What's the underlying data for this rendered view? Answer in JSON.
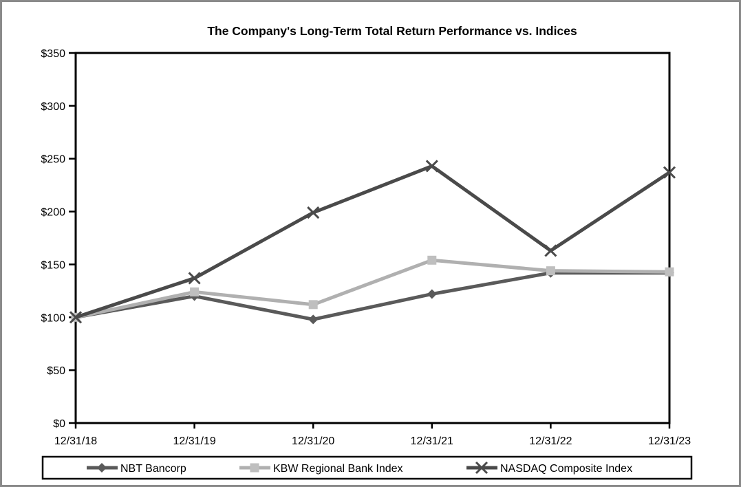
{
  "window": {
    "background": "#ffffff",
    "border_color": "#8a8a8a",
    "axis_color": "#000000"
  },
  "chart_data": {
    "type": "line",
    "title": "The Company's Long-Term Total Return Performance vs. Indices",
    "xlabel": "",
    "ylabel": "",
    "categories": [
      "12/31/18",
      "12/31/19",
      "12/31/20",
      "12/31/21",
      "12/31/22",
      "12/31/23"
    ],
    "series": [
      {
        "name": "NBT Bancorp",
        "marker": "diamond",
        "color": "#5a5a5a",
        "marker_color": "#5a5a5a",
        "values": [
          100,
          120,
          98,
          122,
          142,
          142
        ]
      },
      {
        "name": "KBW Regional Bank Index",
        "marker": "square",
        "color": "#b0b0b0",
        "marker_color": "#bfbfbf",
        "values": [
          100,
          124,
          112,
          154,
          144,
          143
        ]
      },
      {
        "name": "NASDAQ Composite Index",
        "marker": "x",
        "color": "#4a4a4a",
        "marker_color": "#4a4a4a",
        "values": [
          100,
          137,
          199,
          243,
          163,
          237
        ]
      }
    ],
    "ylim": [
      0,
      350
    ],
    "ytick_step": 50,
    "ytick_labels": [
      "$0",
      "$50",
      "$100",
      "$150",
      "$200",
      "$250",
      "$300",
      "$350"
    ],
    "grid": false,
    "legend_position": "bottom"
  }
}
